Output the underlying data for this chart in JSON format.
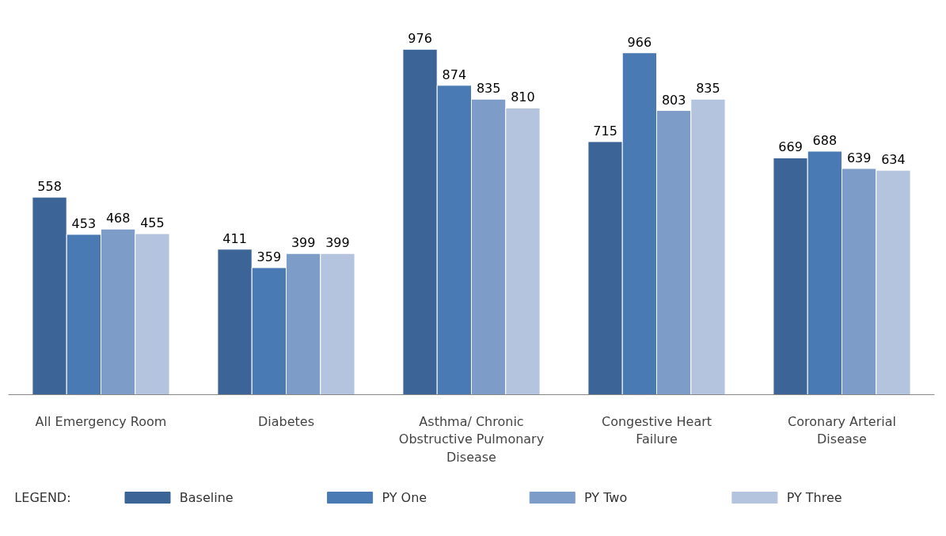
{
  "chart_data": {
    "type": "bar",
    "categories": [
      "All Emergency Room",
      "Diabetes",
      "Asthma/ Chronic Obstructive Pulmonary Disease",
      "Congestive Heart Failure",
      "Coronary Arterial Disease"
    ],
    "series": [
      {
        "name": "Baseline",
        "color": "#3c6496",
        "values": [
          558,
          411,
          976,
          715,
          669
        ]
      },
      {
        "name": "PY One",
        "color": "#4a7ab4",
        "values": [
          453,
          359,
          874,
          966,
          688
        ]
      },
      {
        "name": "PY Two",
        "color": "#7e9cc8",
        "values": [
          468,
          399,
          835,
          803,
          639
        ]
      },
      {
        "name": "PY Three",
        "color": "#b5c4de",
        "values": [
          455,
          399,
          810,
          835,
          634
        ]
      }
    ],
    "data_labels": true,
    "legend": "bottom",
    "legend_title": "LEGEND:",
    "grid": false
  }
}
